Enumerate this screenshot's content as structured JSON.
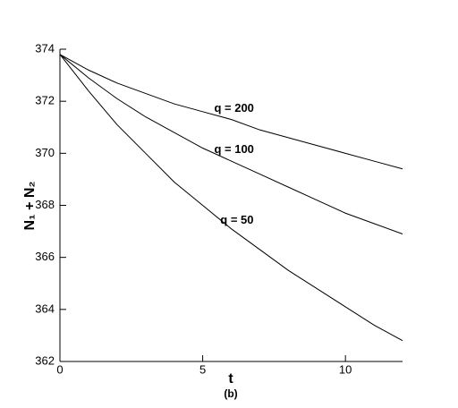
{
  "chart_data": {
    "type": "line",
    "x_label": "t",
    "y_label": "N₁ + N₂",
    "caption": "(b)",
    "x": [
      0,
      1,
      2,
      3,
      4,
      5,
      6,
      7,
      8,
      9,
      10,
      11,
      12
    ],
    "series": [
      {
        "name": "q = 200",
        "color": "#000000",
        "values": [
          373.8,
          373.2,
          372.7,
          372.3,
          371.9,
          371.6,
          371.3,
          370.9,
          370.6,
          370.3,
          370.0,
          369.7,
          369.4
        ]
      },
      {
        "name": "q = 100",
        "color": "#000000",
        "values": [
          373.8,
          372.9,
          372.1,
          371.4,
          370.8,
          370.2,
          369.7,
          369.2,
          368.7,
          368.2,
          367.7,
          367.3,
          366.9
        ]
      },
      {
        "name": "q = 50",
        "color": "#000000",
        "values": [
          373.8,
          372.4,
          371.1,
          370.0,
          368.9,
          368.0,
          367.1,
          366.3,
          365.5,
          364.8,
          364.1,
          363.4,
          362.8
        ]
      }
    ],
    "xlim": [
      0,
      12
    ],
    "xticks": [
      0,
      5,
      10
    ],
    "ylim": [
      362,
      374
    ],
    "yticks": [
      362,
      364,
      366,
      368,
      370,
      372,
      374
    ],
    "grid": false
  }
}
